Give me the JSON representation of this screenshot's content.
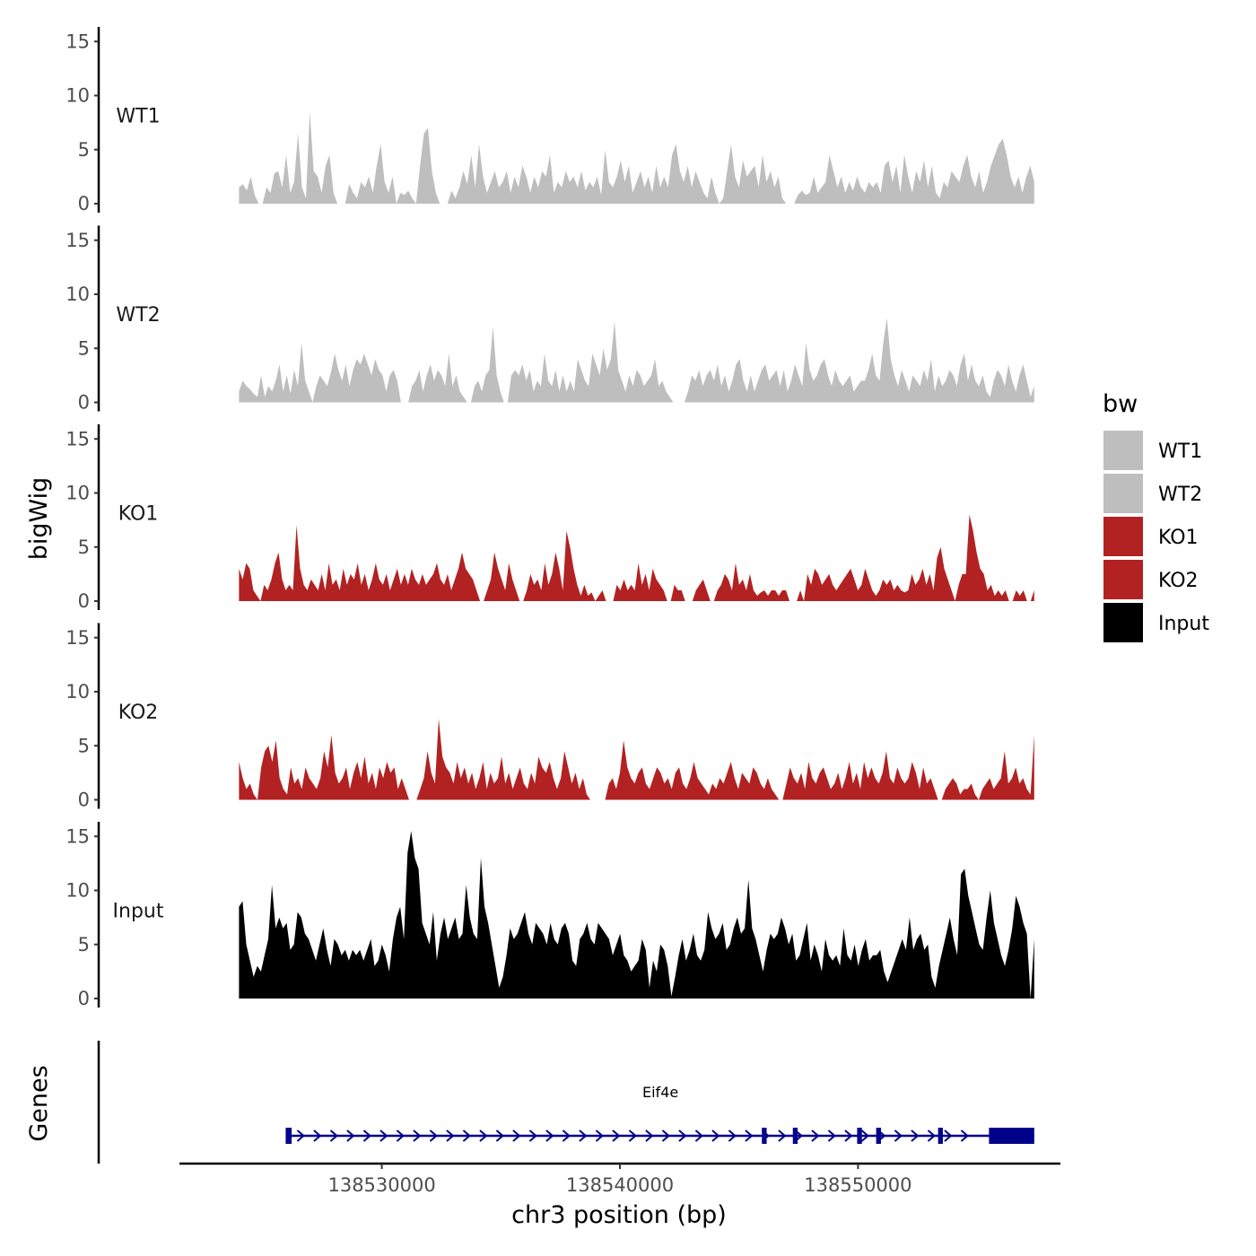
{
  "chart_data": {
    "type": "area",
    "title": "",
    "xlabel": "chr3 position (bp)",
    "ylabel": "bigWig",
    "genes_panel_label": "Genes",
    "xlim": [
      138521500,
      138558500
    ],
    "x_ticks": [
      138530000,
      138540000,
      138550000
    ],
    "x_tick_labels": [
      "138530000",
      "138540000",
      "138550000"
    ],
    "ylim": [
      0,
      16
    ],
    "y_ticks": [
      0,
      5,
      10,
      15
    ],
    "y_tick_labels": [
      "0",
      "5",
      "10",
      "15"
    ],
    "data_range": [
      138524000,
      138557400
    ],
    "legend": {
      "title": "bw",
      "position": "right",
      "entries": [
        {
          "label": "WT1",
          "color": "#bebebe"
        },
        {
          "label": "WT2",
          "color": "#bebebe"
        },
        {
          "label": "KO1",
          "color": "#b22222"
        },
        {
          "label": "KO2",
          "color": "#b22222"
        },
        {
          "label": "Input",
          "color": "#000000"
        }
      ]
    },
    "series": [
      {
        "name": "WT1",
        "color": "#bebebe",
        "values": [
          1.5,
          1.8,
          1.2,
          2.5,
          0.8,
          0,
          0,
          1.5,
          1.0,
          2.8,
          3.0,
          1.5,
          4.5,
          1.0,
          2.0,
          6.5,
          1.5,
          0.5,
          8.5,
          3.0,
          2.5,
          1.0,
          3.5,
          4.5,
          1.0,
          0,
          0,
          0,
          1.8,
          1.0,
          0.5,
          2.0,
          1.5,
          2.5,
          1.0,
          3.5,
          5.5,
          2.0,
          1.0,
          2.5,
          0,
          1.0,
          0.8,
          1.2,
          0.5,
          0,
          3.5,
          6.5,
          7.0,
          3.0,
          1.0,
          0,
          0,
          0,
          1.2,
          0.5,
          1.5,
          3.0,
          1.8,
          4.5,
          1.5,
          5.5,
          2.5,
          1.0,
          2.0,
          3.0,
          1.5,
          2.0,
          3.0,
          1.0,
          2.5,
          1.5,
          3.5,
          2.5,
          1.0,
          2.5,
          1.5,
          3.0,
          2.5,
          4.5,
          1.0,
          2.0,
          1.5,
          3.0,
          2.0,
          2.5,
          1.5,
          3.0,
          1.2,
          2.0,
          1.5,
          2.5,
          0.8,
          5.0,
          2.0,
          1.5,
          2.5,
          4.0,
          2.0,
          3.5,
          1.0,
          2.0,
          3.0,
          1.5,
          2.5,
          1.0,
          3.5,
          1.5,
          2.5,
          1.5,
          4.5,
          5.5,
          3.0,
          2.0,
          3.5,
          1.5,
          3.0,
          2.0,
          1.0,
          0.5,
          2.5,
          1.0,
          0,
          0.5,
          3.0,
          5.5,
          2.5,
          1.5,
          4.0,
          2.5,
          3.0,
          3.5,
          1.5,
          4.5,
          2.0,
          3.0,
          1.5,
          2.5,
          0.5,
          0,
          0,
          0,
          0.8,
          1.2,
          0.8,
          1.0,
          2.5,
          1.0,
          1.5,
          2.0,
          4.5,
          3.0,
          1.5,
          2.5,
          1.0,
          2.0,
          1.2,
          2.5,
          1.5,
          1.0,
          2.0,
          1.5,
          2.0,
          1.0,
          3.5,
          4.0,
          2.0,
          3.5,
          1.0,
          4.5,
          2.5,
          1.0,
          3.0,
          2.0,
          4.0,
          1.5,
          3.5,
          1.0,
          0.5,
          2.0,
          1.5,
          3.0,
          2.5,
          2.0,
          3.5,
          4.5,
          2.5,
          1.5,
          3.0,
          1.0,
          2.0,
          3.5,
          4.5,
          5.5,
          6.0,
          4.5,
          2.5,
          1.5,
          2.5,
          1.0,
          2.5,
          3.5,
          2.0
        ]
      },
      {
        "name": "WT2",
        "color": "#bebebe",
        "values": [
          1.0,
          2.0,
          1.5,
          1.2,
          0.8,
          0.5,
          2.5,
          0.5,
          1.5,
          1.0,
          2.0,
          3.5,
          1.0,
          2.5,
          0.8,
          3.0,
          1.5,
          5.5,
          2.0,
          1.0,
          0,
          1.5,
          2.5,
          2.0,
          1.5,
          2.8,
          4.5,
          3.0,
          2.0,
          3.5,
          1.5,
          3.0,
          4.0,
          3.5,
          4.5,
          3.5,
          2.5,
          4.0,
          3.0,
          2.5,
          1.0,
          2.5,
          3.0,
          2.0,
          0,
          0,
          0,
          1.5,
          2.0,
          3.0,
          1.0,
          2.5,
          3.5,
          2.0,
          3.0,
          2.5,
          1.5,
          4.5,
          1.5,
          2.5,
          1.0,
          0.5,
          0,
          0,
          1.5,
          2.0,
          1.0,
          2.5,
          3.0,
          7.0,
          2.5,
          1.0,
          0,
          0,
          2.5,
          3.0,
          2.5,
          3.5,
          2.0,
          3.0,
          1.0,
          2.0,
          1.5,
          4.5,
          2.0,
          1.5,
          3.0,
          1.0,
          2.5,
          1.0,
          2.0,
          1.0,
          4.0,
          3.0,
          2.0,
          1.5,
          4.5,
          3.5,
          2.5,
          5.0,
          3.0,
          4.0,
          7.5,
          3.0,
          2.0,
          1.0,
          2.5,
          1.5,
          3.0,
          2.5,
          1.5,
          2.0,
          2.5,
          4.0,
          1.5,
          2.0,
          1.0,
          0.5,
          0,
          0,
          0,
          0,
          1.0,
          2.5,
          2.0,
          3.0,
          1.5,
          2.5,
          3.0,
          2.0,
          3.5,
          1.5,
          2.5,
          1.0,
          2.0,
          3.5,
          4.0,
          2.0,
          1.0,
          2.5,
          1.0,
          2.0,
          3.0,
          3.5,
          2.0,
          2.5,
          3.0,
          1.5,
          3.0,
          1.0,
          2.0,
          3.5,
          2.5,
          1.5,
          5.5,
          3.0,
          2.0,
          2.5,
          3.5,
          4.0,
          2.5,
          1.5,
          3.0,
          2.0,
          1.5,
          2.0,
          2.5,
          1.0,
          1.5,
          2.0,
          2.0,
          3.0,
          4.5,
          2.5,
          2.0,
          5.5,
          7.8,
          4.0,
          2.5,
          1.5,
          3.0,
          2.0,
          1.0,
          2.5,
          2.0,
          1.5,
          3.0,
          2.0,
          4.0,
          1.0,
          2.5,
          1.5,
          2.0,
          3.0,
          2.5,
          1.5,
          3.5,
          4.5,
          2.0,
          3.5,
          2.0,
          1.5,
          2.5,
          1.0,
          0.5,
          2.0,
          3.0,
          2.5,
          1.5,
          3.5,
          2.0,
          1.0,
          2.5,
          3.5,
          2.0,
          0.5,
          1.5
        ]
      },
      {
        "name": "KO1",
        "color": "#b22222",
        "values": [
          3.0,
          2.0,
          3.5,
          3.0,
          1.0,
          0.5,
          0,
          1.5,
          1.0,
          2.0,
          3.5,
          4.5,
          2.0,
          1.0,
          1.5,
          1.0,
          7.0,
          3.0,
          1.5,
          1.0,
          2.0,
          1.5,
          1.0,
          2.5,
          1.0,
          3.5,
          1.5,
          2.0,
          1.0,
          3.0,
          1.5,
          2.5,
          2.0,
          3.5,
          1.5,
          2.5,
          1.0,
          2.0,
          3.5,
          2.0,
          1.5,
          2.5,
          1.0,
          2.0,
          3.0,
          1.5,
          2.5,
          1.5,
          3.0,
          2.0,
          1.5,
          2.5,
          1.5,
          2.0,
          2.5,
          3.5,
          2.0,
          1.5,
          2.5,
          1.0,
          2.0,
          3.0,
          4.5,
          3.0,
          2.5,
          2.0,
          1.0,
          0,
          0,
          1.0,
          2.0,
          4.5,
          3.0,
          2.0,
          1.0,
          3.5,
          2.0,
          1.0,
          0,
          0,
          1.0,
          2.5,
          1.5,
          2.0,
          1.0,
          3.5,
          1.5,
          2.5,
          4.5,
          3.0,
          1.0,
          6.5,
          5.0,
          3.0,
          1.5,
          0.5,
          1.5,
          0.5,
          0.8,
          0,
          0.5,
          1.0,
          0,
          0,
          0,
          1.5,
          1.0,
          2.0,
          1.0,
          1.5,
          1.0,
          3.5,
          1.5,
          2.5,
          1.0,
          3.0,
          2.0,
          1.5,
          1.0,
          0,
          0,
          1.5,
          1.0,
          1.0,
          0,
          0,
          0,
          1.0,
          1.5,
          2.0,
          1.0,
          0,
          0,
          1.0,
          1.5,
          2.5,
          2.0,
          1.0,
          3.5,
          1.5,
          2.0,
          1.0,
          2.5,
          1.0,
          0.5,
          0.8,
          1.0,
          0.5,
          1.0,
          1.0,
          0.5,
          1.0,
          1.0,
          0,
          0,
          0,
          1.0,
          0,
          2.5,
          1.5,
          3.0,
          2.5,
          1.5,
          2.0,
          2.5,
          1.5,
          1.0,
          1.5,
          2.0,
          2.5,
          3.0,
          2.0,
          1.0,
          1.5,
          3.0,
          2.0,
          1.0,
          0.5,
          1.0,
          2.0,
          1.5,
          2.0,
          1.0,
          1.5,
          1.0,
          0.8,
          1.0,
          2.5,
          1.5,
          2.0,
          3.0,
          1.5,
          2.5,
          1.0,
          4.0,
          5.0,
          3.0,
          2.0,
          1.0,
          0,
          1.5,
          2.5,
          2.5,
          8.0,
          6.5,
          4.5,
          3.0,
          2.5,
          1.0,
          1.5,
          0.5,
          1.0,
          0.5,
          1.0,
          0,
          0,
          1.0,
          0.5,
          1.0,
          0,
          0,
          1.0
        ]
      },
      {
        "name": "KO2",
        "color": "#b22222",
        "values": [
          3.5,
          2.0,
          1.0,
          1.5,
          0.5,
          0,
          3.0,
          4.5,
          5.0,
          3.5,
          5.5,
          2.0,
          1.0,
          0.5,
          3.0,
          1.5,
          2.0,
          1.0,
          3.0,
          2.0,
          1.5,
          1.0,
          2.0,
          4.5,
          3.0,
          6.0,
          2.5,
          1.5,
          2.0,
          3.0,
          1.0,
          2.5,
          3.5,
          2.0,
          4.0,
          1.5,
          2.5,
          1.0,
          3.0,
          2.0,
          3.5,
          2.5,
          3.0,
          1.0,
          2.0,
          1.0,
          0,
          0,
          0,
          1.0,
          2.0,
          4.5,
          2.5,
          1.5,
          7.5,
          4.0,
          3.0,
          2.5,
          1.5,
          3.5,
          2.0,
          3.0,
          1.5,
          2.5,
          1.0,
          2.0,
          3.5,
          1.0,
          2.5,
          1.5,
          2.0,
          4.0,
          1.5,
          2.5,
          1.0,
          2.0,
          3.0,
          1.5,
          1.0,
          2.5,
          1.5,
          4.0,
          3.0,
          2.5,
          3.5,
          2.0,
          1.0,
          2.0,
          4.5,
          3.0,
          1.5,
          2.5,
          1.0,
          2.0,
          0.5,
          0,
          0,
          0,
          0,
          0,
          1.5,
          2.0,
          1.0,
          2.5,
          5.5,
          3.0,
          2.0,
          1.5,
          2.5,
          3.0,
          1.5,
          1.0,
          2.0,
          3.0,
          2.5,
          1.5,
          2.0,
          1.0,
          2.5,
          3.0,
          1.5,
          1.0,
          2.0,
          3.5,
          2.0,
          1.5,
          1.0,
          0.5,
          1.5,
          1.0,
          2.0,
          1.5,
          2.5,
          3.5,
          2.0,
          1.0,
          2.5,
          2.0,
          1.5,
          3.0,
          2.5,
          1.5,
          1.0,
          2.0,
          1.0,
          0.5,
          0,
          0,
          1.5,
          3.0,
          2.0,
          1.5,
          2.5,
          1.0,
          3.5,
          2.0,
          1.5,
          2.5,
          3.0,
          2.0,
          1.0,
          1.5,
          2.5,
          1.0,
          2.0,
          3.5,
          1.5,
          2.5,
          1.0,
          3.5,
          2.0,
          3.0,
          2.0,
          1.5,
          2.5,
          4.5,
          2.0,
          1.5,
          3.0,
          2.0,
          1.5,
          2.0,
          3.5,
          2.5,
          1.0,
          3.0,
          1.5,
          2.0,
          1.0,
          0,
          0,
          1.0,
          1.5,
          2.0,
          1.5,
          0.5,
          1.0,
          1.0,
          1.5,
          0.5,
          0,
          1.0,
          1.5,
          2.0,
          1.0,
          1.5,
          2.0,
          4.5,
          1.5,
          2.0,
          3.0,
          1.5,
          2.0,
          1.0,
          0.5,
          6.0
        ]
      },
      {
        "name": "Input",
        "color": "#000000",
        "values": [
          8.5,
          9.0,
          5.0,
          3.5,
          2.0,
          3.0,
          2.5,
          4.0,
          5.5,
          10.5,
          6.5,
          7.5,
          6.5,
          7.0,
          4.5,
          5.0,
          8.0,
          7.5,
          6.0,
          5.5,
          4.5,
          3.5,
          5.0,
          6.5,
          4.5,
          3.0,
          5.5,
          5.0,
          4.0,
          4.5,
          3.5,
          4.5,
          4.0,
          4.5,
          3.5,
          4.5,
          5.5,
          3.0,
          3.5,
          5.0,
          4.0,
          2.5,
          5.5,
          7.5,
          8.5,
          5.5,
          13.5,
          15.5,
          13.0,
          12.0,
          7.0,
          6.0,
          5.0,
          8.0,
          3.5,
          6.0,
          7.5,
          5.5,
          6.5,
          7.5,
          5.5,
          6.0,
          10.5,
          7.5,
          6.0,
          5.5,
          13.0,
          8.5,
          7.0,
          5.0,
          3.0,
          1.0,
          2.0,
          4.0,
          6.5,
          5.5,
          6.0,
          7.0,
          8.0,
          6.0,
          5.0,
          7.0,
          6.5,
          6.0,
          5.0,
          7.0,
          5.5,
          5.0,
          6.5,
          7.0,
          6.0,
          3.5,
          3.0,
          5.5,
          6.0,
          7.0,
          5.5,
          5.0,
          7.0,
          6.5,
          6.0,
          5.5,
          4.0,
          5.0,
          6.0,
          4.0,
          3.5,
          2.5,
          3.0,
          3.5,
          5.5,
          4.5,
          1.0,
          3.5,
          2.5,
          5.0,
          4.5,
          3.0,
          0.2,
          2.0,
          4.0,
          5.5,
          3.5,
          4.5,
          6.0,
          4.0,
          3.5,
          4.5,
          8.0,
          6.5,
          5.5,
          6.0,
          7.0,
          4.5,
          5.0,
          6.5,
          7.5,
          6.0,
          6.5,
          11.0,
          6.5,
          5.5,
          4.0,
          2.5,
          4.5,
          6.0,
          5.5,
          6.0,
          7.5,
          6.5,
          5.0,
          6.0,
          3.5,
          4.0,
          5.5,
          7.0,
          3.5,
          5.0,
          4.0,
          2.5,
          5.5,
          4.0,
          3.5,
          4.0,
          3.0,
          6.5,
          4.0,
          3.5,
          5.0,
          3.0,
          4.5,
          5.5,
          3.5,
          4.0,
          4.0,
          4.5,
          2.5,
          1.5,
          2.5,
          3.5,
          4.5,
          5.5,
          4.5,
          7.5,
          4.5,
          5.5,
          6.0,
          4.5,
          5.0,
          2.0,
          1.0,
          3.0,
          4.5,
          6.0,
          7.5,
          5.5,
          4.0,
          11.5,
          12.0,
          9.5,
          8.0,
          6.5,
          5.0,
          4.5,
          7.5,
          10.0,
          7.0,
          5.5,
          4.0,
          3.0,
          4.5,
          6.5,
          9.5,
          8.5,
          7.0,
          6.0,
          0,
          5.5
        ]
      }
    ],
    "genes": [
      {
        "name": "Eif4e",
        "start": 138526000,
        "end": 138557400,
        "strand": "+",
        "exons": [
          [
            138526000,
            138526250
          ],
          [
            138546000,
            138546200
          ],
          [
            138547300,
            138547500
          ],
          [
            138550000,
            138550200
          ],
          [
            138550800,
            138551000
          ],
          [
            138553400,
            138553600
          ],
          [
            138555500,
            138557400
          ]
        ]
      }
    ]
  }
}
